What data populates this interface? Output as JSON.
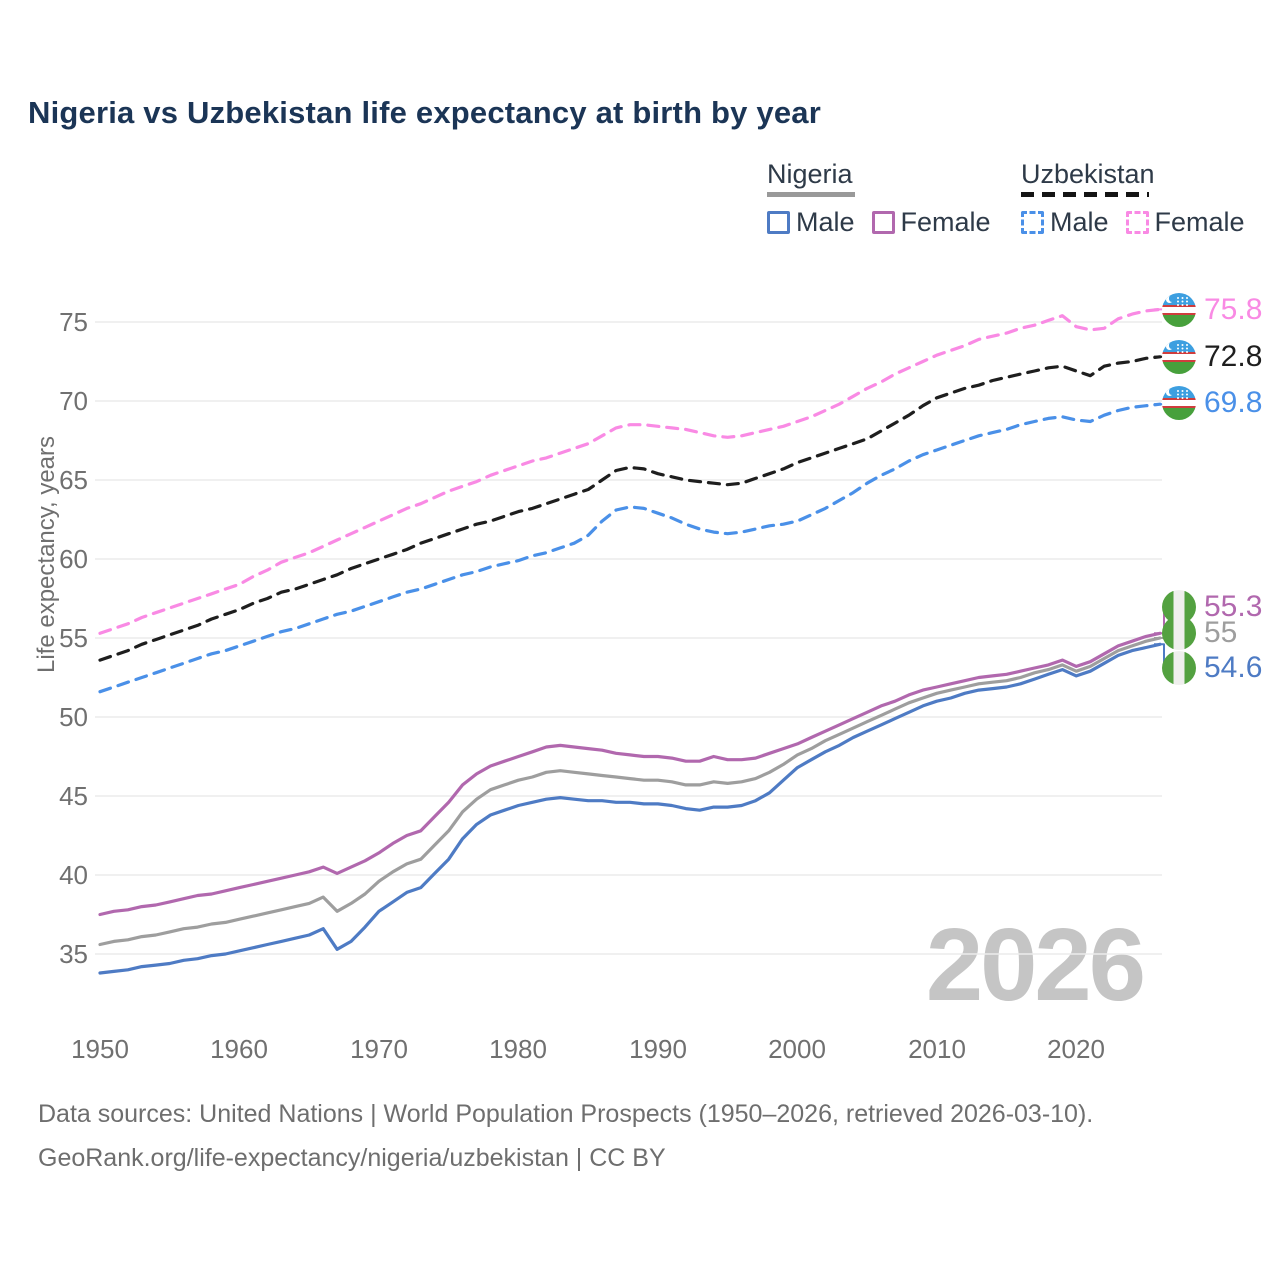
{
  "title": "Nigeria vs Uzbekistan life expectancy at birth by year",
  "watermark": "2026",
  "y_axis_title": "Life expectancy, years",
  "legend": {
    "nigeria": {
      "label": "Nigeria",
      "male": "Male",
      "female": "Female"
    },
    "uzbekistan": {
      "label": "Uzbekistan",
      "male": "Male",
      "female": "Female"
    }
  },
  "end_labels": {
    "uzbekistan_female": "75.8",
    "uzbekistan_both": "72.8",
    "uzbekistan_male": "69.8",
    "nigeria_female": "55.3",
    "nigeria_both": "55",
    "nigeria_male": "54.6"
  },
  "footer": {
    "line1": "Data sources: United Nations | World Population Prospects (1950–2026, retrieved 2026-03-10).",
    "line2": "GeoRank.org/life-expectancy/nigeria/uzbekistan | CC BY"
  },
  "chart_data": {
    "type": "line",
    "title": "Nigeria vs Uzbekistan life expectancy at birth by year",
    "xlabel": "",
    "ylabel": "Life expectancy, years",
    "x_ticks": [
      1950,
      1960,
      1970,
      1980,
      1990,
      2000,
      2010,
      2020
    ],
    "y_ticks": [
      35,
      40,
      45,
      50,
      55,
      60,
      65,
      70,
      75
    ],
    "xlim": [
      1950,
      2026
    ],
    "ylim": [
      33,
      77
    ],
    "grid": "horizontal",
    "legend_position": "top-right",
    "years": [
      1950,
      1951,
      1952,
      1953,
      1954,
      1955,
      1956,
      1957,
      1958,
      1959,
      1960,
      1961,
      1962,
      1963,
      1964,
      1965,
      1966,
      1967,
      1968,
      1969,
      1970,
      1971,
      1972,
      1973,
      1974,
      1975,
      1976,
      1977,
      1978,
      1979,
      1980,
      1981,
      1982,
      1983,
      1984,
      1985,
      1986,
      1987,
      1988,
      1989,
      1990,
      1991,
      1992,
      1993,
      1994,
      1995,
      1996,
      1997,
      1998,
      1999,
      2000,
      2001,
      2002,
      2003,
      2004,
      2005,
      2006,
      2007,
      2008,
      2009,
      2010,
      2011,
      2012,
      2013,
      2014,
      2015,
      2016,
      2017,
      2018,
      2019,
      2020,
      2021,
      2022,
      2023,
      2024,
      2025,
      2026
    ],
    "series": [
      {
        "name": "Nigeria Male",
        "style": "solid",
        "color": "#4e7bc4",
        "end_value": 54.6,
        "values": [
          33.8,
          33.9,
          34.0,
          34.2,
          34.3,
          34.4,
          34.6,
          34.7,
          34.9,
          35.0,
          35.2,
          35.4,
          35.6,
          35.8,
          36.0,
          36.2,
          36.6,
          35.3,
          35.8,
          36.7,
          37.7,
          38.3,
          38.9,
          39.2,
          40.1,
          41.0,
          42.3,
          43.2,
          43.8,
          44.1,
          44.4,
          44.6,
          44.8,
          44.9,
          44.8,
          44.7,
          44.7,
          44.6,
          44.6,
          44.5,
          44.5,
          44.4,
          44.2,
          44.1,
          44.3,
          44.3,
          44.4,
          44.7,
          45.2,
          46.0,
          46.8,
          47.3,
          47.8,
          48.2,
          48.7,
          49.1,
          49.5,
          49.9,
          50.3,
          50.7,
          51.0,
          51.2,
          51.5,
          51.7,
          51.8,
          51.9,
          52.1,
          52.4,
          52.7,
          53.0,
          52.6,
          52.9,
          53.4,
          53.9,
          54.2,
          54.4,
          54.6
        ]
      },
      {
        "name": "Nigeria Both sexes",
        "style": "solid",
        "color": "#9e9e9e",
        "end_value": 55,
        "values": [
          35.6,
          35.8,
          35.9,
          36.1,
          36.2,
          36.4,
          36.6,
          36.7,
          36.9,
          37.0,
          37.2,
          37.4,
          37.6,
          37.8,
          38.0,
          38.2,
          38.6,
          37.7,
          38.2,
          38.8,
          39.6,
          40.2,
          40.7,
          41.0,
          41.9,
          42.8,
          44.0,
          44.8,
          45.4,
          45.7,
          46.0,
          46.2,
          46.5,
          46.6,
          46.5,
          46.4,
          46.3,
          46.2,
          46.1,
          46.0,
          46.0,
          45.9,
          45.7,
          45.7,
          45.9,
          45.8,
          45.9,
          46.1,
          46.5,
          47.0,
          47.6,
          48.0,
          48.5,
          48.9,
          49.3,
          49.7,
          50.1,
          50.5,
          50.9,
          51.2,
          51.5,
          51.7,
          51.9,
          52.1,
          52.2,
          52.3,
          52.5,
          52.8,
          53.0,
          53.3,
          52.9,
          53.2,
          53.7,
          54.2,
          54.5,
          54.8,
          55.0
        ]
      },
      {
        "name": "Nigeria Female",
        "style": "solid",
        "color": "#b168ae",
        "end_value": 55.3,
        "values": [
          37.5,
          37.7,
          37.8,
          38.0,
          38.1,
          38.3,
          38.5,
          38.7,
          38.8,
          39.0,
          39.2,
          39.4,
          39.6,
          39.8,
          40.0,
          40.2,
          40.5,
          40.1,
          40.5,
          40.9,
          41.4,
          42.0,
          42.5,
          42.8,
          43.7,
          44.6,
          45.7,
          46.4,
          46.9,
          47.2,
          47.5,
          47.8,
          48.1,
          48.2,
          48.1,
          48.0,
          47.9,
          47.7,
          47.6,
          47.5,
          47.5,
          47.4,
          47.2,
          47.2,
          47.5,
          47.3,
          47.3,
          47.4,
          47.7,
          48.0,
          48.3,
          48.7,
          49.1,
          49.5,
          49.9,
          50.3,
          50.7,
          51.0,
          51.4,
          51.7,
          51.9,
          52.1,
          52.3,
          52.5,
          52.6,
          52.7,
          52.9,
          53.1,
          53.3,
          53.6,
          53.2,
          53.5,
          54.0,
          54.5,
          54.8,
          55.1,
          55.3
        ]
      },
      {
        "name": "Uzbekistan Male",
        "style": "dashed",
        "color": "#4a90e8",
        "end_value": 69.8,
        "values": [
          51.6,
          51.9,
          52.2,
          52.5,
          52.8,
          53.1,
          53.4,
          53.7,
          54.0,
          54.2,
          54.5,
          54.8,
          55.1,
          55.4,
          55.6,
          55.9,
          56.2,
          56.5,
          56.7,
          57.0,
          57.3,
          57.6,
          57.9,
          58.1,
          58.4,
          58.7,
          59.0,
          59.2,
          59.5,
          59.7,
          59.9,
          60.2,
          60.4,
          60.7,
          61.0,
          61.5,
          62.4,
          63.1,
          63.3,
          63.2,
          62.9,
          62.6,
          62.2,
          61.9,
          61.7,
          61.6,
          61.7,
          61.9,
          62.1,
          62.2,
          62.4,
          62.8,
          63.2,
          63.7,
          64.2,
          64.8,
          65.3,
          65.7,
          66.2,
          66.6,
          66.9,
          67.2,
          67.5,
          67.8,
          68.0,
          68.2,
          68.5,
          68.7,
          68.9,
          69.0,
          68.8,
          68.7,
          69.1,
          69.4,
          69.6,
          69.7,
          69.8
        ]
      },
      {
        "name": "Uzbekistan Both sexes",
        "style": "dashed",
        "color": "#1e1e1e",
        "end_value": 72.8,
        "values": [
          53.6,
          53.9,
          54.2,
          54.6,
          54.9,
          55.2,
          55.5,
          55.8,
          56.2,
          56.5,
          56.8,
          57.2,
          57.5,
          57.9,
          58.1,
          58.4,
          58.7,
          59.0,
          59.4,
          59.7,
          60.0,
          60.3,
          60.6,
          61.0,
          61.3,
          61.6,
          61.9,
          62.2,
          62.4,
          62.7,
          63.0,
          63.2,
          63.5,
          63.8,
          64.1,
          64.4,
          65.0,
          65.6,
          65.8,
          65.7,
          65.4,
          65.2,
          65.0,
          64.9,
          64.8,
          64.7,
          64.8,
          65.1,
          65.4,
          65.7,
          66.1,
          66.4,
          66.7,
          67.0,
          67.3,
          67.6,
          68.1,
          68.6,
          69.1,
          69.7,
          70.2,
          70.5,
          70.8,
          71.0,
          71.3,
          71.5,
          71.7,
          71.9,
          72.1,
          72.2,
          71.9,
          71.6,
          72.2,
          72.4,
          72.5,
          72.7,
          72.8
        ]
      },
      {
        "name": "Uzbekistan Female",
        "style": "dashed",
        "color": "#f98ae4",
        "end_value": 75.8,
        "values": [
          55.3,
          55.6,
          55.9,
          56.3,
          56.6,
          56.9,
          57.2,
          57.5,
          57.8,
          58.1,
          58.4,
          58.9,
          59.3,
          59.8,
          60.1,
          60.4,
          60.8,
          61.2,
          61.6,
          62.0,
          62.4,
          62.8,
          63.2,
          63.5,
          63.9,
          64.3,
          64.6,
          64.9,
          65.3,
          65.6,
          65.9,
          66.2,
          66.4,
          66.7,
          67.0,
          67.3,
          67.8,
          68.3,
          68.5,
          68.5,
          68.4,
          68.3,
          68.2,
          68.0,
          67.8,
          67.7,
          67.8,
          68.0,
          68.2,
          68.4,
          68.7,
          69.0,
          69.4,
          69.8,
          70.3,
          70.8,
          71.2,
          71.7,
          72.1,
          72.5,
          72.9,
          73.2,
          73.5,
          73.9,
          74.1,
          74.3,
          74.6,
          74.8,
          75.1,
          75.4,
          74.7,
          74.5,
          74.6,
          75.2,
          75.5,
          75.7,
          75.8
        ]
      }
    ]
  }
}
